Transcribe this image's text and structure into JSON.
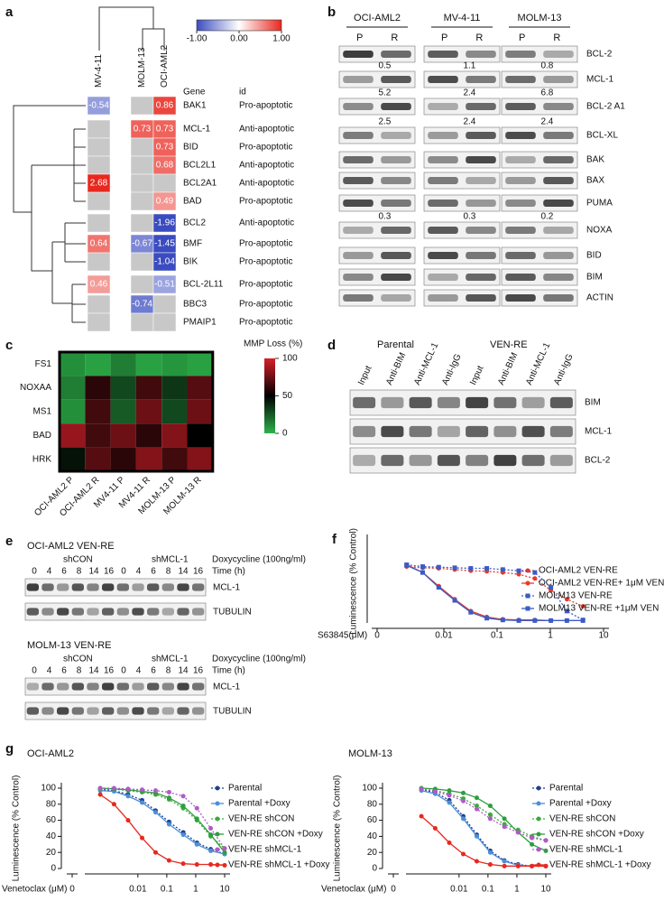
{
  "panel_letters": [
    "a",
    "b",
    "c",
    "d",
    "e",
    "f",
    "g"
  ],
  "panel_a": {
    "columns": [
      "MV-4-11",
      "MOLM-13",
      "OCI-AML2"
    ],
    "header": {
      "gene": "Gene",
      "id": "id"
    },
    "rows": [
      {
        "gene": "BAK1",
        "id": "Pro-apoptotic",
        "values": [
          -0.54,
          null,
          0.86
        ]
      },
      {
        "gene": "MCL-1",
        "id": "Anti-apoptotic",
        "values": [
          null,
          0.73,
          0.73
        ]
      },
      {
        "gene": "BID",
        "id": "Pro-apoptotic",
        "values": [
          null,
          null,
          0.73
        ]
      },
      {
        "gene": "BCL2L1",
        "id": "Anti-apoptotic",
        "values": [
          null,
          null,
          0.68
        ]
      },
      {
        "gene": "BCL2A1",
        "id": "Anti-apoptotic",
        "values": [
          2.68,
          null,
          null
        ]
      },
      {
        "gene": "BAD",
        "id": "Pro-apoptotic",
        "values": [
          null,
          null,
          0.49
        ]
      },
      {
        "gene": "BCL2",
        "id": "Anti-apoptotic",
        "values": [
          null,
          null,
          -1.96
        ]
      },
      {
        "gene": "BMF",
        "id": "Pro-apoptotic",
        "values": [
          0.64,
          -0.67,
          -1.45
        ]
      },
      {
        "gene": "BIK",
        "id": "Pro-apoptotic",
        "values": [
          null,
          null,
          -1.04
        ]
      },
      {
        "gene": "BCL-2L11",
        "id": "Pro-apoptotic",
        "values": [
          0.46,
          null,
          -0.51
        ]
      },
      {
        "gene": "BBC3",
        "id": "Pro-apoptotic",
        "values": [
          null,
          -0.74,
          null
        ]
      },
      {
        "gene": "PMAIP1",
        "id": "Pro-apoptotic",
        "values": [
          null,
          null,
          null
        ]
      }
    ],
    "missing_color": "#c8c8c8",
    "colorbar": {
      "lim": [
        -1,
        1
      ],
      "colors": [
        "#3b4cc0",
        "#ffffff",
        "#e8281e"
      ],
      "ticks": [
        {
          "value": -1,
          "label": "-1.00"
        },
        {
          "value": 0,
          "label": "0.00"
        },
        {
          "value": 1,
          "label": "1.00"
        }
      ]
    }
  },
  "panel_b": {
    "cell_lines": [
      "OCI-AML2",
      "MV-4-11",
      "MOLM-13"
    ],
    "lanes": [
      {
        "name": "P",
        "color": "#111111"
      },
      {
        "name": "R",
        "color": "#e8281e"
      }
    ],
    "rows": [
      {
        "protein": "BCL-2"
      },
      {
        "protein": "MCL-1",
        "ratios": [
          0.5,
          1.1,
          0.8
        ]
      },
      {
        "protein": "BCL-2 A1",
        "ratios": [
          5.2,
          2.4,
          6.8
        ]
      },
      {
        "protein": "BCL-XL",
        "ratios": [
          2.5,
          2.4,
          2.4
        ]
      },
      {
        "protein": "BAK"
      },
      {
        "protein": "BAX"
      },
      {
        "protein": "PUMA"
      },
      {
        "protein": "NOXA",
        "ratios": [
          0.3,
          0.3,
          0.2
        ]
      },
      {
        "protein": "BID"
      },
      {
        "protein": "BIM"
      },
      {
        "protein": "ACTIN"
      }
    ]
  },
  "panel_c": {
    "rows": [
      "FS1",
      "NOXAA",
      "MS1",
      "BAD",
      "HRK"
    ],
    "columns": [
      "OCI-AML2 P",
      "OCI-AML2 R",
      "MV4-11 P",
      "MV4-11 R",
      "MOLM-13 P",
      "MOLM-13 R"
    ],
    "column_colors": [
      "#111111",
      "#e8281e",
      "#111111",
      "#e8281e",
      "#111111",
      "#e8281e"
    ],
    "values": [
      [
        10,
        5,
        15,
        5,
        8,
        5
      ],
      [
        15,
        60,
        30,
        65,
        35,
        70
      ],
      [
        10,
        65,
        25,
        75,
        30,
        75
      ],
      [
        85,
        65,
        75,
        60,
        80,
        50
      ],
      [
        45,
        70,
        60,
        80,
        65,
        80
      ]
    ],
    "colorbar": {
      "title": "MMP Loss (%)",
      "lim": [
        0,
        100
      ],
      "ticks": [
        0,
        50,
        100
      ],
      "colors": [
        "#2db34a",
        "#000000",
        "#d8202a"
      ]
    }
  },
  "panel_d": {
    "groups": [
      {
        "name": "Parental",
        "color": "#111111",
        "lanes": [
          "Input",
          "Anti-BIM",
          "Anti-MCL-1",
          "Anti-IgG"
        ]
      },
      {
        "name": "VEN-RE",
        "color": "#e8281e",
        "lanes": [
          "Input",
          "Anti-BIM",
          "Anti-MCL-1",
          "Anti-IgG"
        ]
      }
    ],
    "proteins": [
      "BIM",
      "MCL-1",
      "BCL-2"
    ]
  },
  "panel_e": {
    "blots": [
      {
        "title": "OCI-AML2 VEN-RE",
        "treatment": "Doxycycline (100ng/ml)",
        "time_label": "Time (h)",
        "groups": [
          {
            "name": "shCON",
            "color": "#111111",
            "times": [
              0,
              4,
              6,
              8,
              14,
              16
            ]
          },
          {
            "name": "shMCL-1",
            "color": "#e8281e",
            "times": [
              0,
              4,
              6,
              8,
              14,
              16
            ]
          }
        ],
        "proteins": [
          "MCL-1",
          "TUBULIN"
        ]
      },
      {
        "title": "MOLM-13 VEN-RE",
        "treatment": "Doxycycline (100ng/ml)",
        "time_label": "Time (h)",
        "groups": [
          {
            "name": "shCON",
            "color": "#111111",
            "times": [
              0,
              4,
              6,
              8,
              14,
              16
            ]
          },
          {
            "name": "shMCL-1",
            "color": "#e8281e",
            "times": [
              0,
              4,
              6,
              8,
              14,
              16
            ]
          }
        ],
        "proteins": [
          "MCL-1",
          "TUBULIN"
        ]
      }
    ]
  },
  "chart_data": [
    {
      "type": "line",
      "xscale": "log",
      "xlabel": "S63845(μM)",
      "ylabel": "Luminescence (% Control)",
      "x": [
        0.002,
        0.004,
        0.008,
        0.016,
        0.032,
        0.064,
        0.128,
        0.256,
        0.512,
        1.024,
        2.048,
        4.096
      ],
      "xlim": [
        0.001,
        10
      ],
      "xticks": [
        0.01,
        0.1,
        1,
        10
      ],
      "x_zero_tick": 0,
      "ylim": [
        0,
        140
      ],
      "series": [
        {
          "name": "OCI-AML2 VEN-RE",
          "color": "#e8392b",
          "line_style": "dotted",
          "marker": "circle",
          "values": [
            95,
            93,
            92,
            90,
            88,
            87,
            85,
            82,
            75,
            55,
            40,
            28
          ]
        },
        {
          "name": "OCI-AML2 VEN-RE+ 1μM VEN",
          "color": "#e8392b",
          "line_style": "solid",
          "marker": "circle",
          "values": [
            98,
            85,
            62,
            40,
            20,
            10,
            6,
            5,
            5,
            4,
            4,
            4
          ]
        },
        {
          "name": "MOLM13 VEN-RE",
          "color": "#3a5bc7",
          "line_style": "dotted",
          "marker": "square",
          "values": [
            98,
            95,
            94,
            93,
            92,
            92,
            90,
            88,
            85,
            60,
            20,
            5
          ]
        },
        {
          "name": "MOLM13 VEN-RE +1μM VEN",
          "color": "#3a5bc7",
          "line_style": "solid",
          "marker": "square",
          "values": [
            97,
            85,
            60,
            38,
            18,
            8,
            5,
            4,
            4,
            4,
            4,
            4
          ]
        }
      ]
    },
    {
      "type": "line",
      "xscale": "log",
      "title": "OCI-AML2",
      "xlabel": "Venetoclax (μM)",
      "ylabel": "Luminescence (% Control)",
      "x": [
        0.0005,
        0.0015,
        0.0046,
        0.014,
        0.041,
        0.12,
        0.37,
        1.1,
        3.3,
        10
      ],
      "xlim": [
        0.0003,
        10
      ],
      "xticks": [
        0.01,
        0.1,
        1,
        10
      ],
      "x_zero_tick": 0,
      "ylim": [
        0,
        100
      ],
      "yticks": [
        0,
        20,
        40,
        60,
        80,
        100
      ],
      "series": [
        {
          "name": "Parental",
          "color": "#1f3f8f",
          "line_style": "dotted",
          "marker": "circle",
          "values": [
            98,
            97,
            92,
            85,
            72,
            58,
            45,
            32,
            24,
            18
          ]
        },
        {
          "name": "Parental +Doxy",
          "color": "#4a8fd8",
          "line_style": "solid",
          "marker": "circle",
          "values": [
            97,
            96,
            90,
            82,
            70,
            55,
            42,
            30,
            22,
            18
          ]
        },
        {
          "name": "VEN-RE shCON",
          "color": "#3aaa3a",
          "line_style": "dotted",
          "marker": "circle",
          "values": [
            99,
            99,
            97,
            95,
            92,
            86,
            75,
            60,
            40,
            25
          ]
        },
        {
          "name": "VEN-RE shCON +Doxy",
          "color": "#2e9e3e",
          "line_style": "solid",
          "marker": "circle",
          "values": [
            100,
            99,
            98,
            96,
            94,
            88,
            78,
            62,
            42,
            20
          ]
        },
        {
          "name": "VEN-RE shMCL-1",
          "color": "#b05ac8",
          "line_style": "dotted",
          "marker": "circle",
          "values": [
            100,
            100,
            99,
            98,
            97,
            95,
            90,
            75,
            50,
            25
          ]
        },
        {
          "name": "VEN-RE shMCL-1 +Doxy",
          "color": "#e8281e",
          "line_style": "solid",
          "marker": "circle",
          "values": [
            92,
            80,
            60,
            38,
            20,
            10,
            6,
            5,
            5,
            4
          ]
        }
      ]
    },
    {
      "type": "line",
      "xscale": "log",
      "title": "MOLM-13",
      "xlabel": "Venetoclax (μM)",
      "ylabel": "Luminescence (% Control)",
      "x": [
        0.0005,
        0.0015,
        0.0046,
        0.014,
        0.041,
        0.12,
        0.37,
        1.1,
        3.3,
        10
      ],
      "xlim": [
        0.0003,
        10
      ],
      "xticks": [
        0.01,
        0.1,
        1,
        10
      ],
      "x_zero_tick": 0,
      "ylim": [
        0,
        100
      ],
      "yticks": [
        0,
        20,
        40,
        60,
        80,
        100
      ],
      "series": [
        {
          "name": "Parental",
          "color": "#1f3f8f",
          "line_style": "dotted",
          "marker": "circle",
          "values": [
            98,
            95,
            85,
            65,
            42,
            22,
            10,
            5,
            3,
            3
          ]
        },
        {
          "name": "Parental +Doxy",
          "color": "#4a8fd8",
          "line_style": "solid",
          "marker": "circle",
          "values": [
            97,
            93,
            82,
            62,
            40,
            20,
            9,
            4,
            3,
            3
          ]
        },
        {
          "name": "VEN-RE shCON",
          "color": "#3aaa3a",
          "line_style": "dotted",
          "marker": "circle",
          "values": [
            99,
            97,
            93,
            87,
            78,
            67,
            55,
            48,
            40,
            35
          ]
        },
        {
          "name": "VEN-RE shCON +Doxy",
          "color": "#2e9e3e",
          "line_style": "solid",
          "marker": "circle",
          "values": [
            100,
            99,
            97,
            94,
            88,
            78,
            62,
            45,
            30,
            22
          ]
        },
        {
          "name": "VEN-RE shMCL-1",
          "color": "#b05ac8",
          "line_style": "dotted",
          "marker": "circle",
          "values": [
            99,
            96,
            91,
            84,
            74,
            62,
            52,
            45,
            38,
            35
          ]
        },
        {
          "name": "VEN-RE shMCL-1 +Doxy",
          "color": "#e8281e",
          "line_style": "solid",
          "marker": "circle",
          "values": [
            65,
            50,
            32,
            18,
            9,
            5,
            3,
            3,
            3,
            3
          ]
        }
      ]
    }
  ]
}
